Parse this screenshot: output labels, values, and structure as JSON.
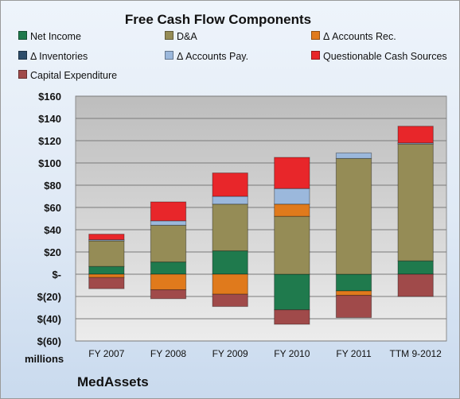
{
  "chart_data": {
    "type": "bar",
    "stacked": true,
    "title": "Free Cash Flow Components",
    "units_label": "millions",
    "brand": "MedAssets",
    "categories": [
      "FY 2007",
      "FY 2008",
      "FY 2009",
      "FY 2010",
      "FY 2011",
      "TTM 9-2012"
    ],
    "y_ticks": [
      "$160",
      "$140",
      "$120",
      "$100",
      "$80",
      "$60",
      "$40",
      "$20",
      "$-",
      "$(20)",
      "$(40)",
      "$(60)"
    ],
    "ylim": [
      -60,
      160
    ],
    "grid": true,
    "legend_position": "top",
    "series": [
      {
        "name": "Net Income",
        "color": "#1f7a4d",
        "values": [
          7,
          11,
          21,
          -32,
          -15,
          12
        ]
      },
      {
        "name": "D&A",
        "color": "#958c56",
        "values": [
          23,
          33,
          42,
          52,
          104,
          105
        ]
      },
      {
        "name": "Δ Accounts Rec.",
        "color": "#e07a1c",
        "values": [
          -3,
          -14,
          -18,
          11,
          -4,
          0
        ]
      },
      {
        "name": "Δ Inventories",
        "color": "#2d4d6b",
        "values": [
          0,
          0,
          0,
          0,
          0,
          0
        ]
      },
      {
        "name": "Δ Accounts Pay.",
        "color": "#9bb8dc",
        "values": [
          1,
          4,
          7,
          14,
          5,
          1
        ]
      },
      {
        "name": "Questionable Cash Sources",
        "color": "#e8262a",
        "values": [
          5,
          17,
          21,
          28,
          0,
          15
        ]
      },
      {
        "name": "Capital Expenditure",
        "color": "#a04a4a",
        "values": [
          -10,
          -8,
          -11,
          -13,
          -20,
          -20
        ]
      }
    ]
  }
}
